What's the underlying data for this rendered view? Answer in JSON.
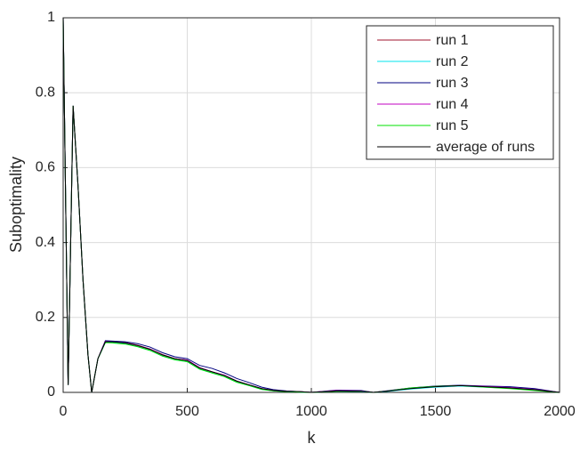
{
  "chart_data": {
    "type": "line",
    "xlabel": "k",
    "ylabel": "Suboptimality",
    "x": [
      0,
      20,
      40,
      60,
      80,
      100,
      115,
      140,
      170,
      200,
      250,
      300,
      350,
      400,
      450,
      500,
      550,
      600,
      650,
      700,
      750,
      800,
      850,
      900,
      950,
      1000,
      1100,
      1200,
      1250,
      1300,
      1400,
      1500,
      1600,
      1700,
      1800,
      1900,
      2000
    ],
    "series": [
      {
        "name": "run 1",
        "color": "#a2142f",
        "values": [
          1,
          0.02,
          0.765,
          0.55,
          0.3,
          0.1,
          0,
          0.09,
          0.137,
          0.136,
          0.133,
          0.126,
          0.116,
          0.101,
          0.09,
          0.086,
          0.066,
          0.055,
          0.045,
          0.03,
          0.02,
          0.01,
          0.005,
          0.003,
          0.002,
          0,
          0.004,
          0.003,
          0,
          0.003,
          0.01,
          0.015,
          0.018,
          0.015,
          0.012,
          0.007,
          0
        ]
      },
      {
        "name": "run 2",
        "color": "#00e5ee",
        "values": [
          1,
          0.02,
          0.765,
          0.55,
          0.3,
          0.1,
          0,
          0.09,
          0.133,
          0.133,
          0.13,
          0.122,
          0.112,
          0.097,
          0.087,
          0.082,
          0.062,
          0.052,
          0.042,
          0.027,
          0.018,
          0.008,
          0.004,
          0.002,
          0.001,
          0,
          0.003,
          0.002,
          0,
          0.002,
          0.009,
          0.014,
          0.017,
          0.014,
          0.011,
          0.006,
          0
        ]
      },
      {
        "name": "run 3",
        "color": "#000080",
        "values": [
          1,
          0.02,
          0.765,
          0.55,
          0.3,
          0.1,
          0,
          0.09,
          0.138,
          0.137,
          0.135,
          0.13,
          0.121,
          0.106,
          0.095,
          0.09,
          0.072,
          0.064,
          0.052,
          0.037,
          0.026,
          0.014,
          0.007,
          0.004,
          0.002,
          0,
          0.006,
          0.005,
          0,
          0.004,
          0.012,
          0.017,
          0.019,
          0.017,
          0.015,
          0.01,
          0
        ]
      },
      {
        "name": "run 4",
        "color": "#c000c0",
        "values": [
          1,
          0.02,
          0.765,
          0.55,
          0.3,
          0.1,
          0,
          0.09,
          0.136,
          0.135,
          0.132,
          0.125,
          0.116,
          0.1,
          0.09,
          0.086,
          0.066,
          0.055,
          0.046,
          0.03,
          0.02,
          0.01,
          0.005,
          0.003,
          0.002,
          0,
          0.005,
          0.004,
          0,
          0.003,
          0.011,
          0.016,
          0.018,
          0.016,
          0.013,
          0.008,
          0
        ]
      },
      {
        "name": "run 5",
        "color": "#00e000",
        "values": [
          1,
          0.02,
          0.765,
          0.55,
          0.3,
          0.1,
          0,
          0.09,
          0.133,
          0.132,
          0.129,
          0.122,
          0.112,
          0.097,
          0.087,
          0.082,
          0.062,
          0.052,
          0.042,
          0.027,
          0.018,
          0.008,
          0.004,
          0.002,
          0.001,
          0,
          0.003,
          0.003,
          0,
          0.003,
          0.012,
          0.016,
          0.018,
          0.014,
          0.01,
          0.005,
          0
        ]
      },
      {
        "name": "average of runs",
        "color": "#000000",
        "values": [
          1,
          0.02,
          0.765,
          0.55,
          0.3,
          0.1,
          0,
          0.09,
          0.135,
          0.135,
          0.132,
          0.125,
          0.115,
          0.1,
          0.09,
          0.085,
          0.065,
          0.055,
          0.045,
          0.03,
          0.02,
          0.01,
          0.005,
          0.003,
          0.002,
          0,
          0.004,
          0.003,
          0,
          0.003,
          0.01,
          0.015,
          0.018,
          0.015,
          0.012,
          0.007,
          0
        ]
      }
    ],
    "xlim": [
      0,
      2000
    ],
    "xticks": [
      0,
      500,
      1000,
      1500,
      2000
    ],
    "ylim": [
      0,
      1
    ],
    "yticks": [
      0,
      0.2,
      0.4,
      0.6,
      0.8,
      1
    ],
    "grid": true,
    "legend": "northeast"
  }
}
